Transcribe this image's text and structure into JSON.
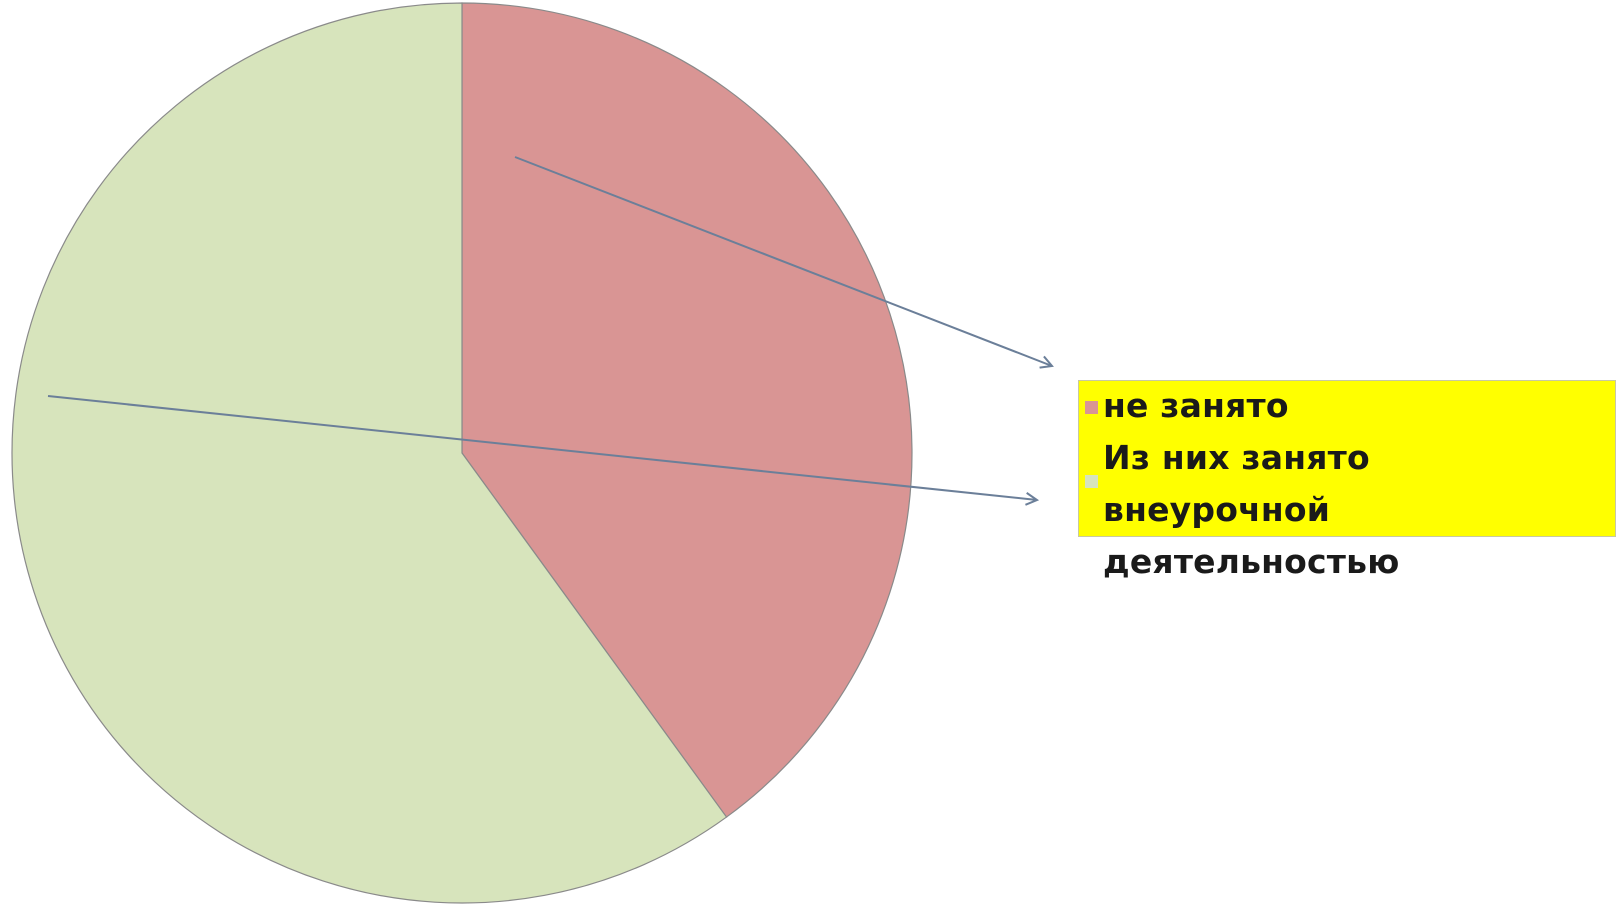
{
  "chart_data": {
    "type": "pie",
    "slices": [
      {
        "label": "не занято",
        "value": 40,
        "color": "#d99594"
      },
      {
        "label": "Из них занято внеурочной деятельностью",
        "value": 60,
        "color": "#d7e4bc"
      }
    ],
    "start_angle": "12 o'clock, clockwise",
    "legend": {
      "placement": "right",
      "background": "#ffff00"
    },
    "annotations": [
      {
        "type": "arrow",
        "from_slice": 0,
        "to": "legend item 0",
        "color": "#6b7f99"
      },
      {
        "type": "arrow",
        "from_slice": 1,
        "to": "legend item 1",
        "color": "#6b7f99"
      }
    ],
    "edge_color": "#8a8a8a"
  }
}
